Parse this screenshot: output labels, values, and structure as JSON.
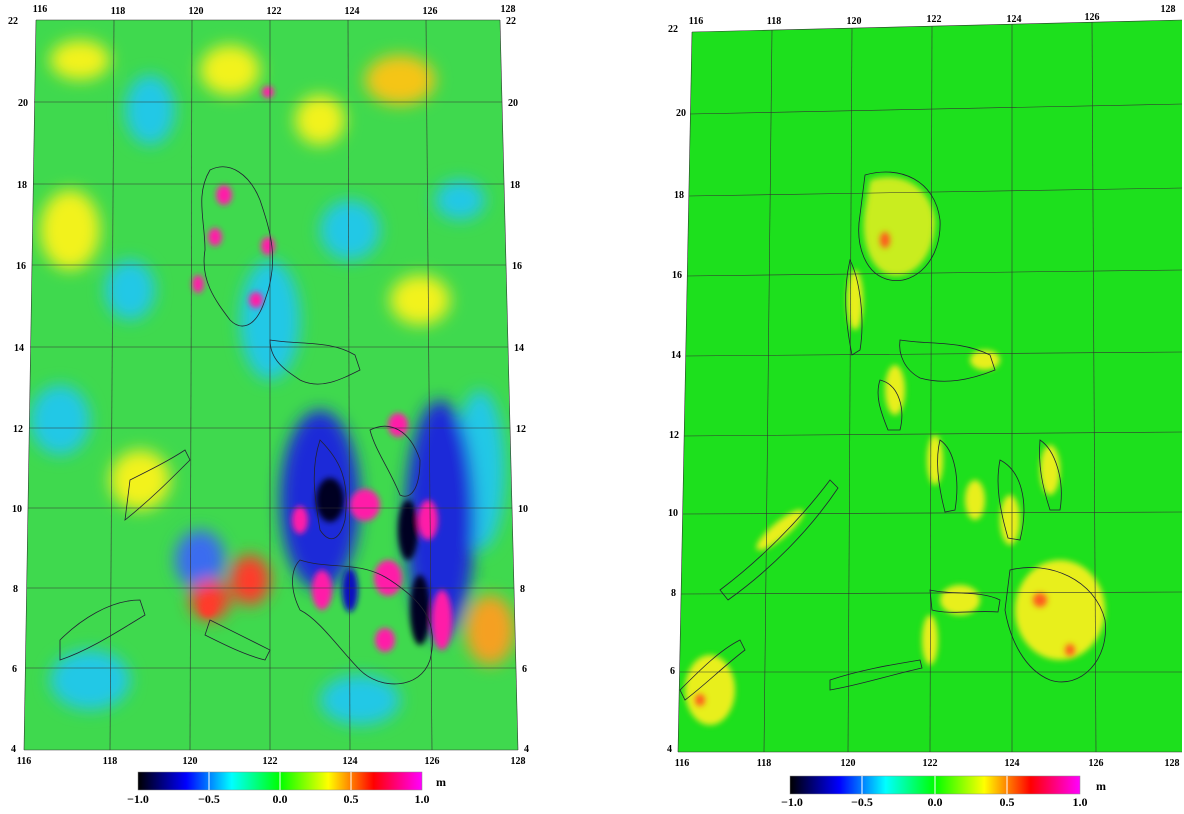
{
  "colorbar": {
    "unit": "m",
    "tick_labels": [
      "−1.0",
      "−0.5",
      "0.0",
      "0.5",
      "1.0"
    ],
    "stops": [
      "#000000",
      "#0000ff",
      "#00ffff",
      "#00ff00",
      "#ffff00",
      "#ff0000",
      "#ff00ff"
    ]
  },
  "maps": [
    {
      "name": "left-map",
      "lon_ticks": [
        "116",
        "118",
        "120",
        "122",
        "124",
        "126",
        "128"
      ],
      "lat_ticks": [
        "22",
        "20",
        "18",
        "16",
        "14",
        "12",
        "10",
        "8",
        "6",
        "4"
      ],
      "lon_range": [
        116,
        128
      ],
      "lat_range": [
        4,
        22
      ],
      "background": "#3fd94e"
    },
    {
      "name": "right-map",
      "lon_ticks": [
        "116",
        "118",
        "120",
        "122",
        "124",
        "126",
        "128"
      ],
      "lat_ticks": [
        "22",
        "20",
        "18",
        "16",
        "14",
        "12",
        "10",
        "8",
        "6",
        "4"
      ],
      "lon_range": [
        116,
        128
      ],
      "lat_range": [
        4,
        22
      ],
      "background": "#1de01d"
    }
  ]
}
